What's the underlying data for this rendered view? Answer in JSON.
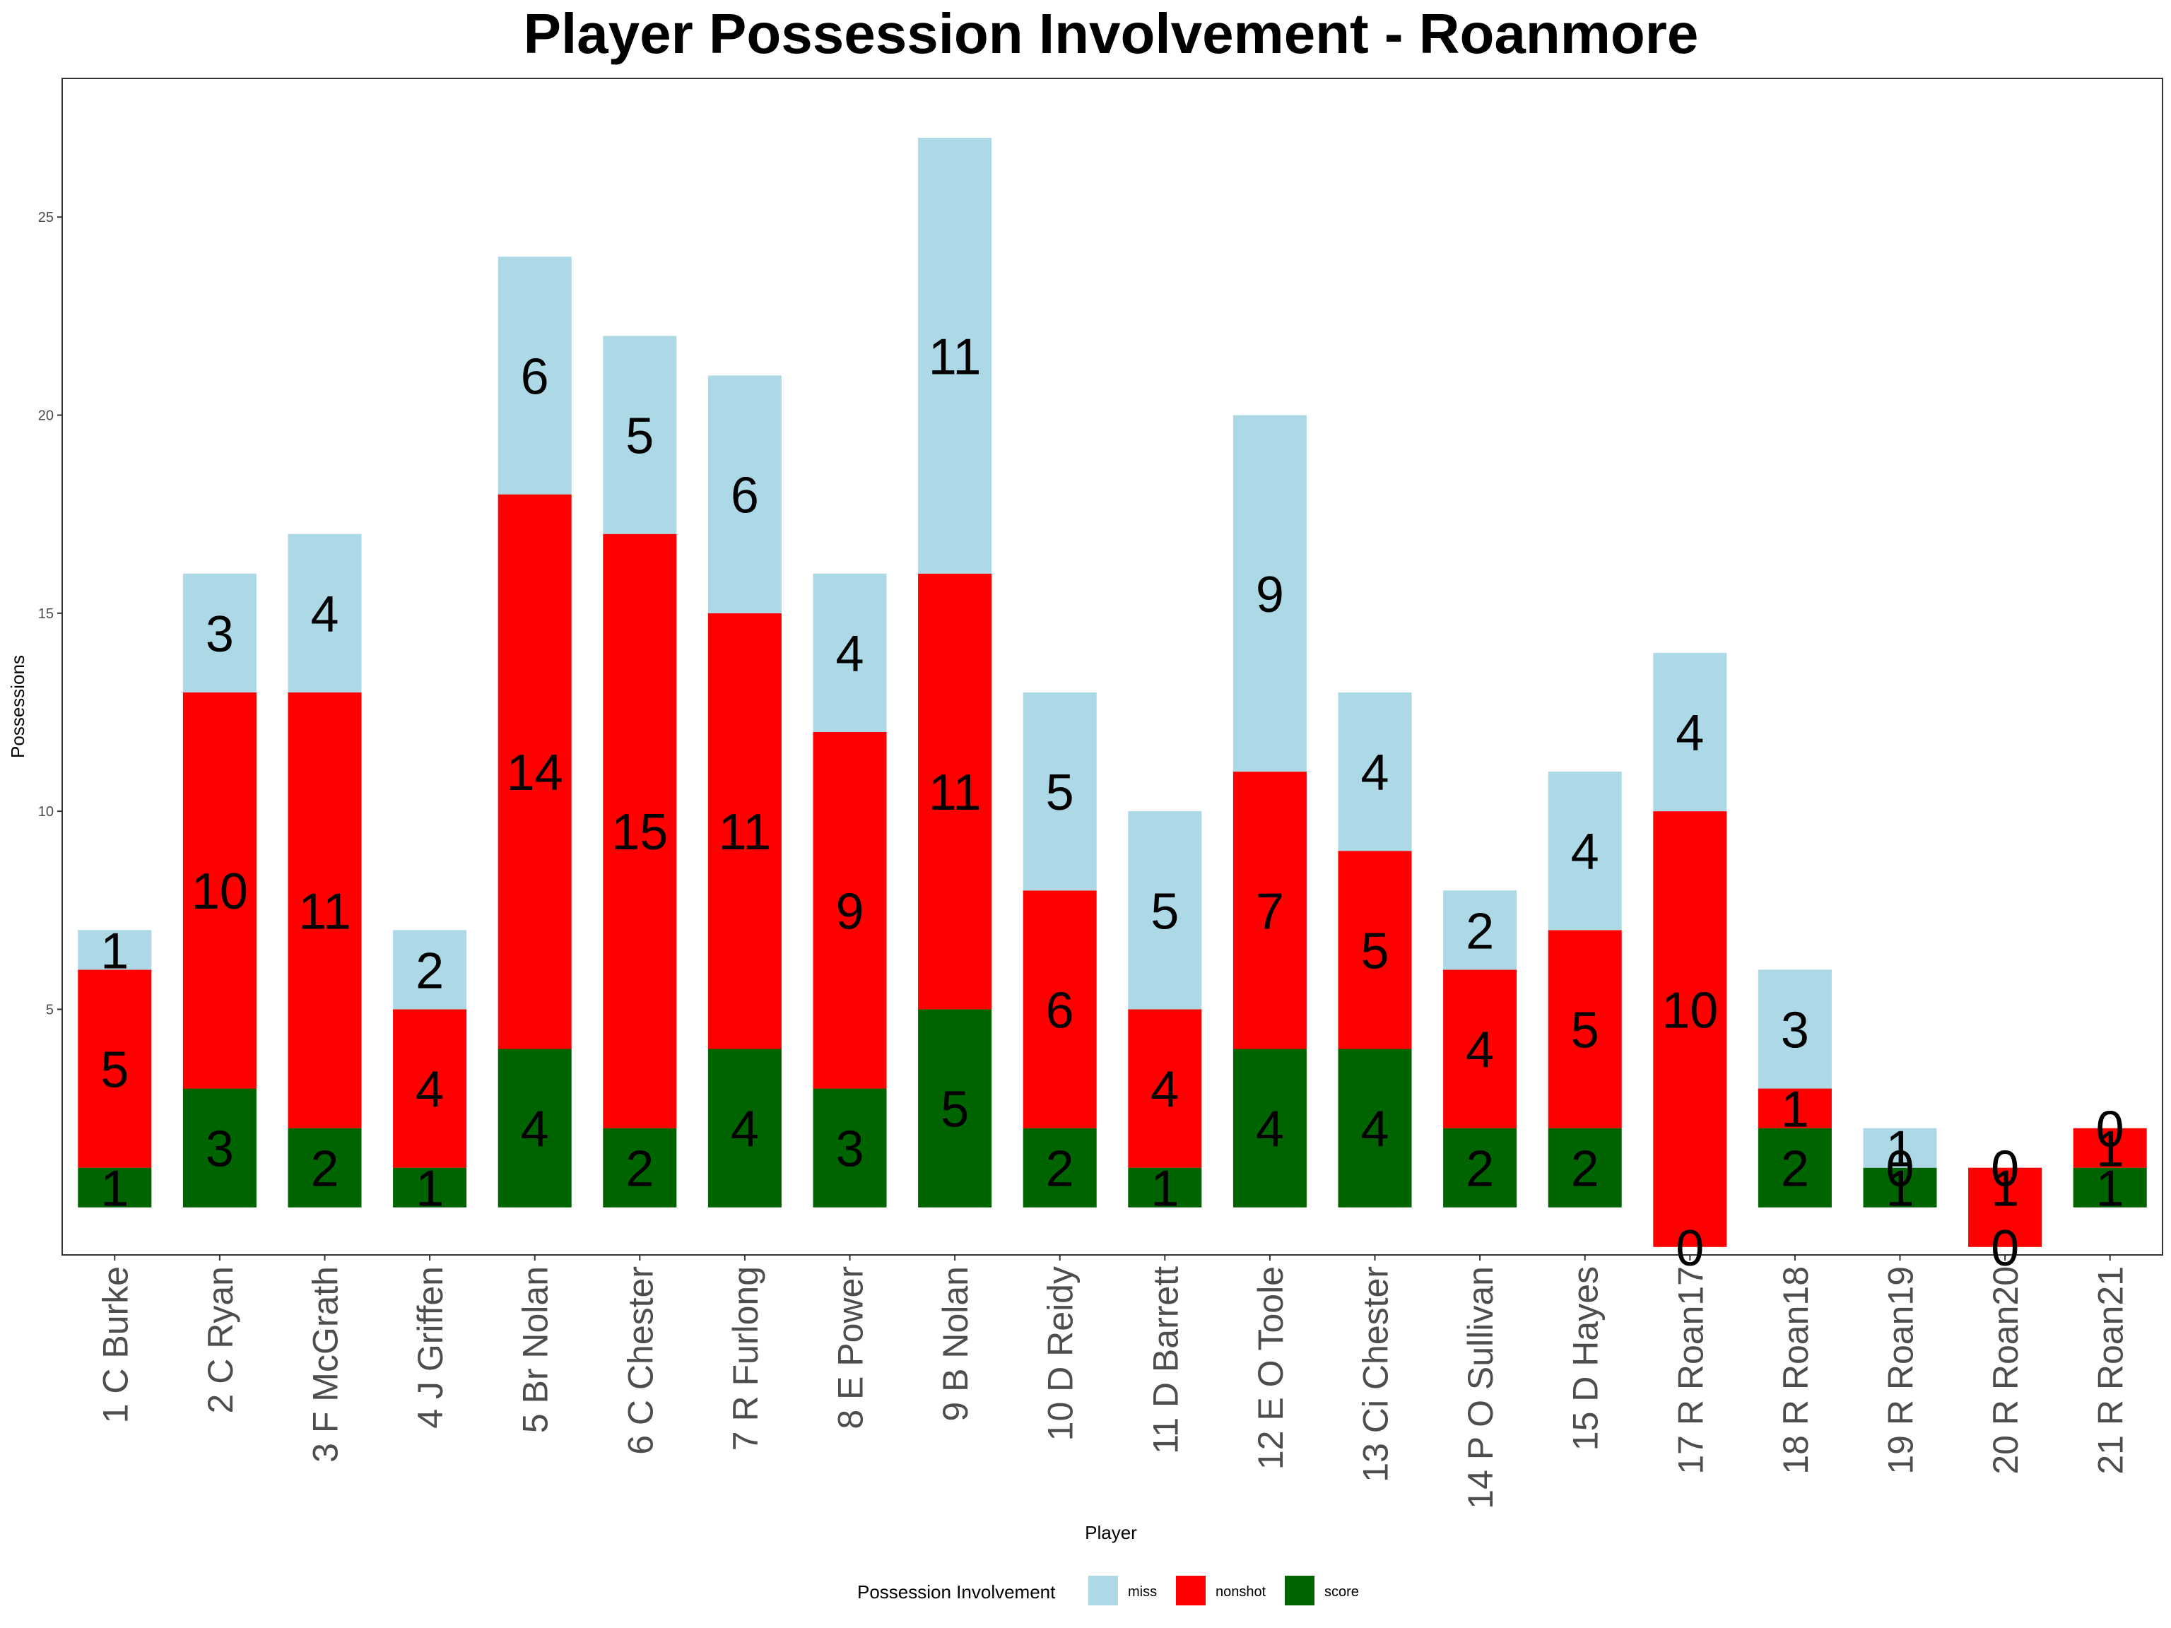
{
  "chart_data": {
    "type": "bar",
    "stacked": true,
    "title": "Player Possession Involvement - Roanmore",
    "xlabel": "Player",
    "ylabel": "Possessions",
    "ylim": [
      -1.2,
      28.5
    ],
    "yticks": [
      5,
      10,
      15,
      20,
      25
    ],
    "grid": false,
    "legend": {
      "title": "Possession Involvement",
      "position": "bottom"
    },
    "categories": [
      "1 C Burke",
      "2 C Ryan",
      "3 F McGrath",
      "4 J Griffen",
      "5 Br Nolan",
      "6 C Chester",
      "7 R Furlong",
      "8 E Power",
      "9 B Nolan",
      "10 D Reidy",
      "11 D Barrett",
      "12 E O Toole",
      "13 Ci Chester",
      "14 P O Sullivan",
      "15 D Hayes",
      "17 R Roan17",
      "18 R Roan18",
      "19 R Roan19",
      "20 R Roan20",
      "21 R Roan21"
    ],
    "series": [
      {
        "name": "score",
        "color": "#006400",
        "values": [
          1,
          3,
          2,
          1,
          4,
          2,
          4,
          3,
          5,
          2,
          1,
          4,
          4,
          2,
          2,
          0,
          2,
          1,
          0,
          1
        ]
      },
      {
        "name": "nonshot",
        "color": "#ff0000",
        "values": [
          5,
          10,
          11,
          4,
          14,
          15,
          11,
          9,
          11,
          6,
          4,
          7,
          5,
          4,
          5,
          10,
          1,
          0,
          1,
          1
        ]
      },
      {
        "name": "miss",
        "color": "#add8e6",
        "values": [
          1,
          3,
          4,
          2,
          6,
          5,
          6,
          4,
          11,
          5,
          5,
          9,
          4,
          2,
          4,
          4,
          3,
          1,
          0,
          0
        ]
      }
    ],
    "label_series": [
      {
        "name": "score",
        "values": [
          1,
          3,
          2,
          1,
          4,
          2,
          4,
          3,
          5,
          2,
          1,
          4,
          4,
          2,
          2,
          0,
          2,
          1,
          0,
          1
        ]
      },
      {
        "name": "nonshot",
        "values": [
          5,
          10,
          11,
          4,
          14,
          15,
          11,
          9,
          11,
          6,
          4,
          7,
          5,
          4,
          5,
          10,
          1,
          0,
          1,
          1
        ]
      },
      {
        "name": "miss",
        "values": [
          1,
          3,
          4,
          2,
          6,
          5,
          6,
          4,
          11,
          5,
          5,
          9,
          4,
          2,
          4,
          4,
          3,
          1,
          0,
          0
        ]
      }
    ],
    "negative_offset": {
      "17 R Roan17": -1,
      "20 R Roan20": -1
    },
    "legend_order": [
      "miss",
      "nonshot",
      "score"
    ]
  }
}
